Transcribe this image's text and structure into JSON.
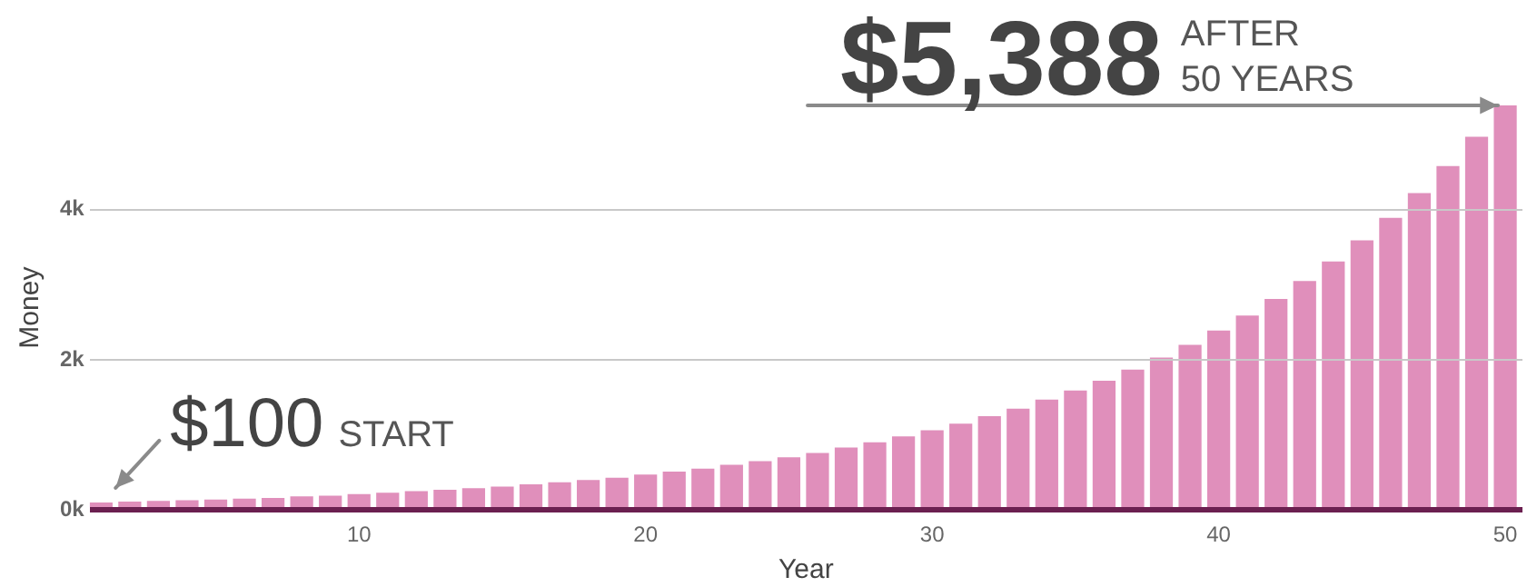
{
  "chart_data": {
    "type": "bar",
    "xlabel": "Year",
    "ylabel": "Money",
    "x": [
      1,
      2,
      3,
      4,
      5,
      6,
      7,
      8,
      9,
      10,
      11,
      12,
      13,
      14,
      15,
      16,
      17,
      18,
      19,
      20,
      21,
      22,
      23,
      24,
      25,
      26,
      27,
      28,
      29,
      30,
      31,
      32,
      33,
      34,
      35,
      36,
      37,
      38,
      39,
      40,
      41,
      42,
      43,
      44,
      45,
      46,
      47,
      48,
      49,
      50
    ],
    "values": [
      100,
      110,
      120,
      130,
      140,
      150,
      160,
      180,
      190,
      210,
      230,
      250,
      270,
      290,
      310,
      340,
      370,
      400,
      430,
      470,
      510,
      550,
      600,
      650,
      700,
      760,
      830,
      900,
      980,
      1060,
      1150,
      1250,
      1350,
      1470,
      1590,
      1720,
      1870,
      2030,
      2200,
      2390,
      2590,
      2810,
      3050,
      3310,
      3590,
      3890,
      4220,
      4580,
      4970,
      5388
    ],
    "color": "#e08fbb",
    "xlim": [
      0.6,
      50.6
    ],
    "xticks": [
      10,
      20,
      30,
      40,
      50
    ],
    "ylim": [
      0,
      5388
    ],
    "yticks": [
      {
        "value": 0,
        "label": "0k"
      },
      {
        "value": 2000,
        "label": "2k"
      },
      {
        "value": 4000,
        "label": "4k"
      }
    ],
    "grid": "y",
    "legend": false,
    "annotations": [
      {
        "text": "$5,388",
        "x": 50,
        "y": 5388
      },
      "AFTER 50 YEARS",
      {
        "text": "$100",
        "x": 1,
        "y": 100
      },
      "START"
    ]
  }
}
